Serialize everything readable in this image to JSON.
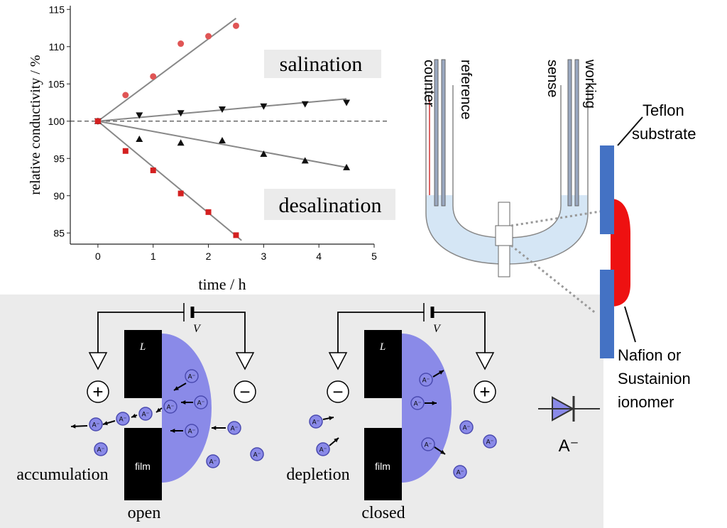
{
  "chart_data": {
    "type": "scatter",
    "x_label": "time / h",
    "y_label": "relative conductivity / %",
    "xlim": [
      -0.5,
      5
    ],
    "ylim": [
      83.5,
      115.5
    ],
    "xticks": [
      0,
      1,
      2,
      3,
      4,
      5
    ],
    "yticks": [
      85,
      90,
      95,
      100,
      105,
      110,
      115
    ],
    "reference_line": 100,
    "annotations": [
      "salination",
      "desalination"
    ],
    "series": [
      {
        "marker": "circle",
        "color": "#e05555",
        "x": [
          0,
          0.5,
          1,
          1.5,
          2,
          2.5
        ],
        "values": [
          100,
          103.5,
          106,
          110.4,
          111.4,
          112.8
        ]
      },
      {
        "marker": "triangle-down",
        "color": "#111111",
        "x": [
          0,
          0.75,
          1.5,
          2.25,
          3,
          3.75,
          4.5
        ],
        "values": [
          100,
          100.8,
          101.1,
          101.6,
          102.0,
          102.3,
          102.5
        ]
      },
      {
        "marker": "triangle-up",
        "color": "#111111",
        "x": [
          0,
          0.75,
          1.5,
          2.25,
          3,
          3.75,
          4.5
        ],
        "values": [
          100,
          97.6,
          97.1,
          97.4,
          95.6,
          94.7,
          93.8
        ]
      },
      {
        "marker": "square",
        "color": "#d42020",
        "x": [
          0,
          0.5,
          1,
          1.5,
          2,
          2.5
        ],
        "values": [
          100,
          96.0,
          93.4,
          90.3,
          87.8,
          84.7
        ]
      },
      {
        "marker": "none",
        "color": "#888888",
        "x": [
          0,
          2.5
        ],
        "values": [
          100,
          113.8
        ]
      },
      {
        "marker": "none",
        "color": "#888888",
        "x": [
          0,
          4.5
        ],
        "values": [
          100,
          103.0
        ]
      },
      {
        "marker": "none",
        "color": "#888888",
        "x": [
          0,
          4.5
        ],
        "values": [
          100,
          93.8
        ]
      },
      {
        "marker": "none",
        "color": "#888888",
        "x": [
          0,
          2.6
        ],
        "values": [
          100,
          84.0
        ]
      }
    ]
  },
  "cell": {
    "electrodes": [
      "counter",
      "reference",
      "sense",
      "working"
    ],
    "substrate": [
      "Teflon",
      "substrate"
    ],
    "ionomer": [
      "Nafion or",
      "Sustainion",
      "ionomer"
    ],
    "diode_label": "A⁻"
  },
  "schematic": {
    "L": "L",
    "V": "V",
    "film": "film",
    "ion": "A⁻",
    "plus": "+",
    "minus": "−",
    "left": {
      "process": "accumulation",
      "state": "open"
    },
    "right": {
      "process": "depletion",
      "state": "closed"
    }
  }
}
